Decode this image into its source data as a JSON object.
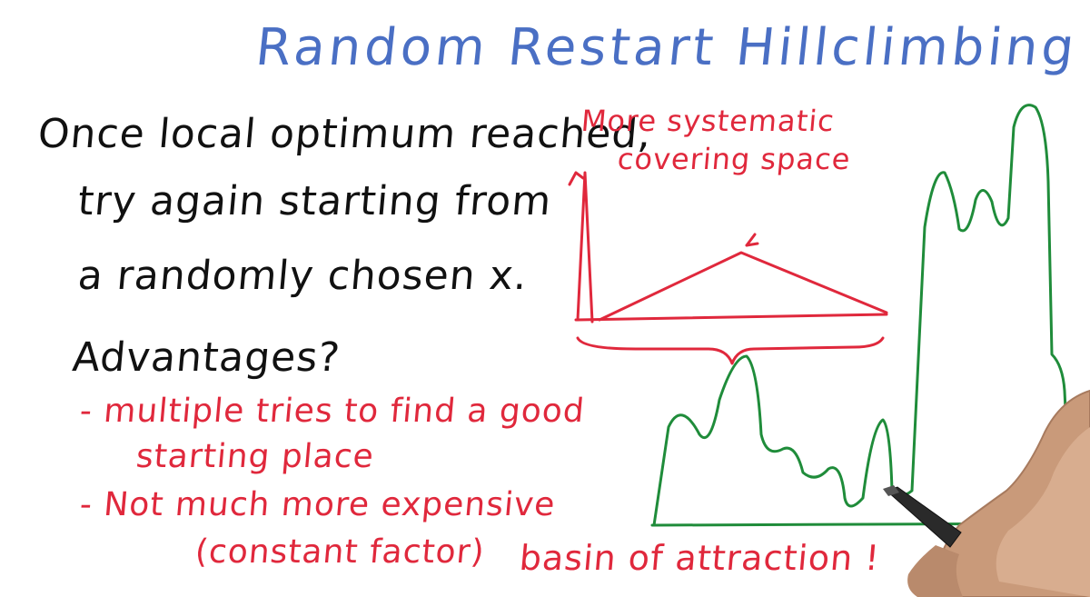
{
  "title": "Random Restart Hillclimbing",
  "main_text": {
    "line1": "Once local optimum reached,",
    "line2": "try again starting from",
    "line3": "a randomly chosen x."
  },
  "advantages": {
    "heading": "Advantages?",
    "bullet1_line1": "- multiple tries to find a good",
    "bullet1_line2": "starting place",
    "bullet2_line1": "- Not much more expensive",
    "bullet2_line2": "(constant factor)"
  },
  "annotations": {
    "systematic_line1": "More systematic",
    "systematic_line2": "covering space",
    "basin": "basin of attraction !"
  },
  "colors": {
    "title": "#4a6fc4",
    "text": "#111111",
    "red": "#e0283c",
    "green": "#1f8c3a",
    "hand": "#c99a7a"
  }
}
